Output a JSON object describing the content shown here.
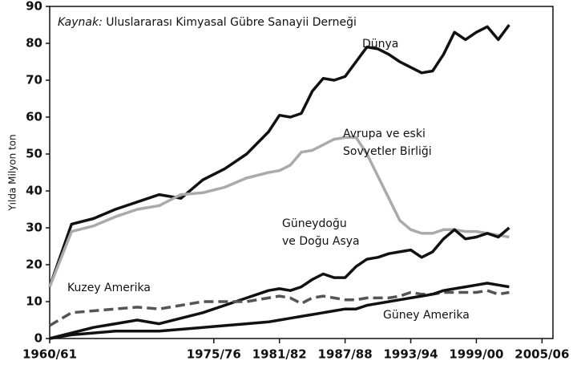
{
  "chart_data": {
    "type": "line",
    "source_label": "Kaynak:",
    "source": "Uluslararası Kimyasal Gübre Sanayii Derneği",
    "y_label": "Yılda Milyon ton",
    "x": [
      1960,
      1962,
      1964,
      1966,
      1968,
      1970,
      1972,
      1974,
      1976,
      1978,
      1980,
      1981,
      1982,
      1983,
      1984,
      1985,
      1986,
      1987,
      1988,
      1989,
      1990,
      1991,
      1992,
      1993,
      1994,
      1995,
      1996,
      1997,
      1998,
      1999,
      2000,
      2001,
      2002
    ],
    "series": [
      {
        "name": "Dünya",
        "color": "#111111",
        "dashed": false,
        "values": [
          14,
          31,
          32.5,
          35,
          37,
          39,
          38,
          43,
          46,
          50,
          56,
          60.5,
          60,
          61,
          67,
          70.5,
          70,
          71,
          75,
          79,
          78.5,
          77,
          75,
          73.5,
          72,
          72.5,
          77,
          83,
          81,
          83,
          84.5,
          81,
          85
        ]
      },
      {
        "name": "Avrupa ve eski Sovyetler Birliği",
        "color": "#aaaaaa",
        "dashed": false,
        "values": [
          14,
          29,
          30.5,
          33,
          35,
          36,
          39,
          39.5,
          41,
          43.5,
          45,
          45.5,
          47,
          50.5,
          51,
          52.5,
          54,
          54.5,
          54.5,
          50,
          44,
          38,
          32,
          29.5,
          28.5,
          28.5,
          29.5,
          29.5,
          29,
          29,
          28.5,
          28,
          27.5
        ]
      },
      {
        "name": "Güneydoğu ve Doğu Asya",
        "color": "#111111",
        "dashed": false,
        "values": [
          0,
          1.5,
          3,
          4,
          5,
          4,
          5.5,
          7,
          9,
          11,
          13,
          13.5,
          13,
          14,
          16,
          17.5,
          16.5,
          16.5,
          19.5,
          21.5,
          22,
          23,
          23.5,
          24,
          22,
          23.5,
          27,
          29.5,
          27,
          27.5,
          28.5,
          27.5,
          30
        ]
      },
      {
        "name": "Kuzey Amerika",
        "color": "#555555",
        "dashed": true,
        "values": [
          3.5,
          7,
          7.5,
          8,
          8.5,
          8,
          9,
          10,
          10,
          10,
          11,
          11.5,
          11,
          9.5,
          11,
          11.5,
          11,
          10.5,
          10.5,
          11,
          11,
          11,
          11.5,
          12.5,
          12,
          12,
          12.5,
          12.5,
          12.5,
          12.5,
          13,
          12,
          12.5
        ]
      },
      {
        "name": "Güney Amerika",
        "color": "#111111",
        "dashed": false,
        "values": [
          0,
          1,
          1.5,
          2,
          2,
          2,
          2.5,
          3,
          3.5,
          4,
          4.5,
          5,
          5.5,
          6,
          6.5,
          7,
          7.5,
          8,
          8,
          9,
          9.5,
          10,
          10.5,
          11,
          11.5,
          12,
          13,
          13.5,
          14,
          14.5,
          15,
          14.5,
          14
        ]
      }
    ],
    "xlim": [
      1960,
      2006
    ],
    "xticks": [
      {
        "value": 1960,
        "label": "1960/61"
      },
      {
        "value": 1975,
        "label": "1975/76"
      },
      {
        "value": 1981,
        "label": "1981/82"
      },
      {
        "value": 1987,
        "label": "1987/88"
      },
      {
        "value": 1993,
        "label": "1993/94"
      },
      {
        "value": 1999,
        "label": "1999/00"
      },
      {
        "value": 2005,
        "label": "2005/06"
      }
    ],
    "ylim": [
      0,
      90
    ],
    "yticks": [
      0,
      10,
      20,
      30,
      40,
      50,
      60,
      70,
      80,
      90
    ],
    "grid": false
  }
}
